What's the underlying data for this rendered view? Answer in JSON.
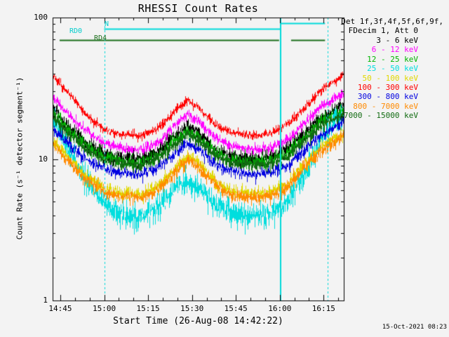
{
  "footer": {
    "timestamp": "15-Oct-2021 08:23"
  },
  "chart_data": {
    "type": "line",
    "title": "RHESSI Count Rates",
    "xlabel": "Start Time (26-Aug-08 14:42:22)",
    "ylabel": "Count Rate (s⁻¹ detector segment⁻¹)",
    "x_axis": {
      "ticks": [
        "14:45",
        "15:00",
        "15:15",
        "15:30",
        "15:45",
        "16:00",
        "16:15"
      ],
      "tick_minutes": [
        2.63,
        17.63,
        32.63,
        47.63,
        62.63,
        77.63,
        92.63
      ],
      "range_minutes": [
        0,
        99.5
      ],
      "minor_step_minutes": 5
    },
    "y_axis": {
      "scale": "log",
      "ticks": [
        "100",
        "10",
        "1"
      ],
      "tick_values": [
        100,
        10,
        1
      ],
      "range": [
        1,
        100
      ]
    },
    "legend": {
      "header_line1": "Det 1f,3f,4f,5f,6f,9f,",
      "header_line2": "FDecim 1, Att 0"
    },
    "t_minutes": [
      0,
      6,
      12,
      18,
      24,
      30,
      36,
      42,
      46,
      50,
      56,
      62,
      68,
      74,
      80,
      86,
      92,
      99.5
    ],
    "series": [
      {
        "label": "3 - 6 keV",
        "color": "#000000",
        "noise": 0.07,
        "values": [
          23,
          16.5,
          12.8,
          10.8,
          10.1,
          10,
          11.2,
          14.8,
          17,
          15.3,
          11.5,
          10.3,
          10,
          10.2,
          11.6,
          15.2,
          19.5,
          24
        ]
      },
      {
        "label": "6 - 12 keV",
        "color": "#ff00ff",
        "noise": 0.045,
        "values": [
          27,
          20,
          15.5,
          12.8,
          11.8,
          11.6,
          13,
          17.5,
          21,
          18.5,
          13.8,
          12.2,
          11.7,
          11.9,
          13.5,
          18,
          24,
          29
        ]
      },
      {
        "label": "12 - 25 keV",
        "color": "#00b400",
        "noise": 0.06,
        "values": [
          21,
          15.5,
          12,
          10.2,
          9.6,
          9.5,
          10.6,
          13.8,
          15.8,
          14.3,
          10.9,
          9.8,
          9.5,
          9.7,
          11,
          14.2,
          18.5,
          22.5
        ]
      },
      {
        "label": "25 - 50 keV",
        "color": "#00dede",
        "noise": 0.12,
        "values": [
          19,
          11,
          6.8,
          4.7,
          4,
          3.9,
          4.6,
          6.2,
          6.9,
          6.3,
          4.7,
          4.1,
          3.9,
          4.05,
          4.9,
          8,
          14,
          21
        ]
      },
      {
        "label": "50 - 100 keV",
        "color": "#e0d800",
        "noise": 0.06,
        "values": [
          13.5,
          9.8,
          7.4,
          6.1,
          5.7,
          5.6,
          6.4,
          8.7,
          10.4,
          9.1,
          6.7,
          5.8,
          5.6,
          5.75,
          6.6,
          9.3,
          12.3,
          15.3
        ]
      },
      {
        "label": "100 - 300 keV",
        "color": "#ff0000",
        "noise": 0.04,
        "values": [
          39,
          28,
          20,
          16,
          14.8,
          14.6,
          16.5,
          22,
          26,
          23,
          17,
          15.2,
          14.7,
          15,
          17.5,
          23,
          31,
          40
        ]
      },
      {
        "label": "300 - 800 keV",
        "color": "#0000e0",
        "noise": 0.055,
        "values": [
          16.5,
          12.5,
          9.7,
          8.4,
          7.9,
          7.8,
          8.7,
          11.2,
          13,
          11.7,
          9,
          8.1,
          7.8,
          8,
          8.9,
          11.6,
          15,
          18.5
        ]
      },
      {
        "label": "800 - 7000 keV",
        "color": "#ff8a00",
        "noise": 0.06,
        "values": [
          12.8,
          9.2,
          7,
          5.8,
          5.4,
          5.3,
          6.1,
          8.2,
          9.9,
          8.6,
          6.4,
          5.5,
          5.3,
          5.45,
          6.2,
          8.8,
          11.7,
          14.6
        ]
      },
      {
        "label": "7000 - 15000 keV",
        "color": "#116b11",
        "noise": 0.06,
        "values": [
          20,
          14.8,
          11.5,
          9.8,
          9.2,
          9.1,
          10.1,
          13,
          15,
          13.5,
          10.4,
          9.4,
          9.1,
          9.3,
          10.4,
          13.5,
          17.5,
          21
        ]
      }
    ],
    "flags": {
      "rd0": {
        "text": "RD0",
        "color": "#00cccc"
      },
      "n": {
        "text": "N",
        "color": "#00cccc"
      },
      "rd4": {
        "text": "RD4",
        "color": "#1b6e1b"
      },
      "bars": [
        {
          "color": "#00d9d9",
          "t1": 17.63,
          "t2": 77.8,
          "value": 83
        },
        {
          "color": "#00d9d9",
          "t1": 77.8,
          "t2": 93.1,
          "value": 91
        },
        {
          "color": "#1b6e1b",
          "t1": 2.4,
          "t2": 77.4,
          "value": 69
        },
        {
          "color": "#1b6e1b",
          "t1": 81.5,
          "t2": 93.1,
          "value": 69
        }
      ],
      "dashed_vlines_minutes": [
        17.63,
        94.1
      ],
      "solid_vlines_minutes": [
        78.0
      ],
      "vline_color": "#00d9d9"
    }
  }
}
